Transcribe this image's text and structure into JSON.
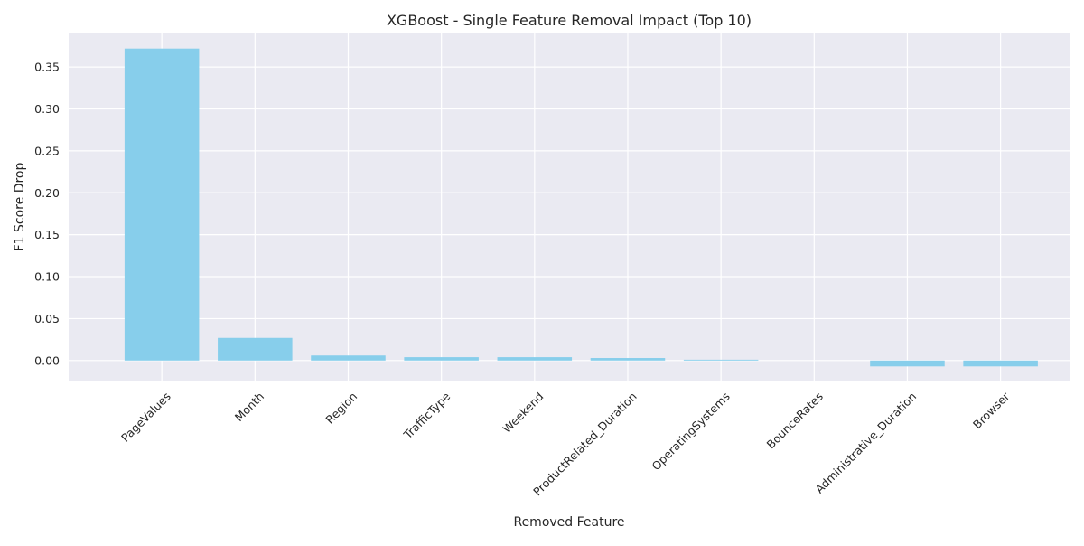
{
  "chart_data": {
    "type": "bar",
    "title": "XGBoost - Single Feature Removal Impact (Top 10)",
    "xlabel": "Removed Feature",
    "ylabel": "F1 Score Drop",
    "categories": [
      "PageValues",
      "Month",
      "Region",
      "TrafficType",
      "Weekend",
      "ProductRelated_Duration",
      "OperatingSystems",
      "BounceRates",
      "Administrative_Duration",
      "Browser"
    ],
    "values": [
      0.372,
      0.027,
      0.006,
      0.004,
      0.004,
      0.003,
      0.001,
      0.0,
      -0.007,
      -0.007
    ],
    "ylim": [
      -0.025,
      0.39
    ],
    "yticks": [
      0.0,
      0.05,
      0.1,
      0.15,
      0.2,
      0.25,
      0.3,
      0.35
    ],
    "ytick_labels": [
      "0.00",
      "0.05",
      "0.10",
      "0.15",
      "0.20",
      "0.25",
      "0.30",
      "0.35"
    ],
    "grid": true,
    "bar_color": "#87CEEB",
    "background_color": "#EAEAF2",
    "grid_color": "#FFFFFF",
    "x_tick_rotation_deg": 45
  }
}
